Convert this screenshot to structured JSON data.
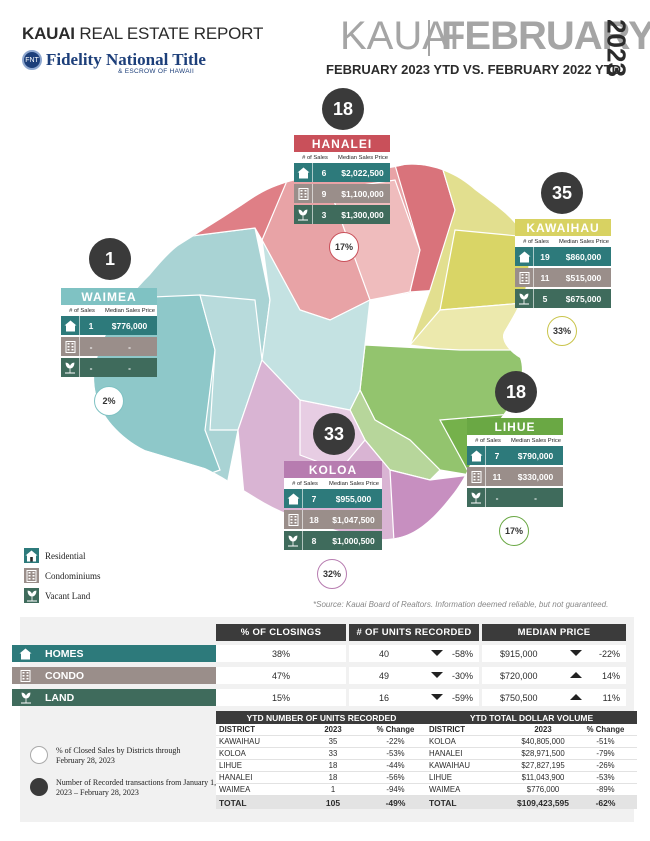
{
  "header": {
    "report_bold": "KAUAI",
    "report_rest": " REAL ESTATE REPORT",
    "logo_name": "Fidelity National Title",
    "logo_sub": "& ESCROW OF HAWAII",
    "place": "KAUAI",
    "month": "FEBRUARY",
    "year": "2023",
    "subtitle": "FEBRUARY 2023 YTD VS. FEBRUARY 2022 YTD"
  },
  "colors": {
    "residential": "#2d7a7b",
    "condominiums": "#9a8e8a",
    "vacant_land": "#3f6b5c",
    "hanalei": "#c9505a",
    "kawaihau": "#d8d262",
    "waimea": "#7fc2c3",
    "lihue": "#6aa844",
    "koloa": "#b77cb0"
  },
  "box_head": {
    "sales": "# of Sales",
    "price": "Median Sales Price"
  },
  "districts": {
    "hanalei": {
      "name": "HANALEI",
      "count": "18",
      "pct": "17%",
      "rows": [
        {
          "type": "residential",
          "icon": "house-icon",
          "sales": "6",
          "price": "$2,022,500"
        },
        {
          "type": "condominiums",
          "icon": "building-icon",
          "sales": "9",
          "price": "$1,100,000"
        },
        {
          "type": "vacant_land",
          "icon": "land-icon",
          "sales": "3",
          "price": "$1,300,000"
        }
      ]
    },
    "kawaihau": {
      "name": "KAWAIHAU",
      "count": "35",
      "pct": "33%",
      "rows": [
        {
          "type": "residential",
          "icon": "house-icon",
          "sales": "19",
          "price": "$860,000"
        },
        {
          "type": "condominiums",
          "icon": "building-icon",
          "sales": "11",
          "price": "$515,000"
        },
        {
          "type": "vacant_land",
          "icon": "land-icon",
          "sales": "5",
          "price": "$675,000"
        }
      ]
    },
    "waimea": {
      "name": "WAIMEA",
      "count": "1",
      "pct": "2%",
      "rows": [
        {
          "type": "residential",
          "icon": "house-icon",
          "sales": "1",
          "price": "$776,000"
        },
        {
          "type": "condominiums",
          "icon": "building-icon",
          "sales": "-",
          "price": "-"
        },
        {
          "type": "vacant_land",
          "icon": "land-icon",
          "sales": "-",
          "price": "-"
        }
      ]
    },
    "lihue": {
      "name": "LIHUE",
      "count": "18",
      "pct": "17%",
      "rows": [
        {
          "type": "residential",
          "icon": "house-icon",
          "sales": "7",
          "price": "$790,000"
        },
        {
          "type": "condominiums",
          "icon": "building-icon",
          "sales": "11",
          "price": "$330,000"
        },
        {
          "type": "vacant_land",
          "icon": "land-icon",
          "sales": "-",
          "price": "-"
        }
      ]
    },
    "koloa": {
      "name": "KOLOA",
      "count": "33",
      "pct": "32%",
      "rows": [
        {
          "type": "residential",
          "icon": "house-icon",
          "sales": "7",
          "price": "$955,000"
        },
        {
          "type": "condominiums",
          "icon": "building-icon",
          "sales": "18",
          "price": "$1,047,500"
        },
        {
          "type": "vacant_land",
          "icon": "land-icon",
          "sales": "8",
          "price": "$1,000,500"
        }
      ]
    }
  },
  "legend": {
    "residential": "Residential",
    "condominiums": "Condominiums",
    "vacant_land": "Vacant Land"
  },
  "source": "*Source: Kauai Board of Realtors. Information deemed reliable, but not guaranteed.",
  "summary": {
    "headers": {
      "closings": "% OF CLOSINGS",
      "units": "# OF UNITS RECORDED",
      "median": "MEDIAN PRICE"
    },
    "rows": [
      {
        "label": "HOMES",
        "icon": "house-icon",
        "type": "residential",
        "closings": "38%",
        "units": "40",
        "units_dir": "down",
        "units_change": "-58%",
        "median": "$915,000",
        "median_dir": "down",
        "median_change": "-22%"
      },
      {
        "label": "CONDO",
        "icon": "building-icon",
        "type": "condominiums",
        "closings": "47%",
        "units": "49",
        "units_dir": "down",
        "units_change": "-30%",
        "median": "$720,000",
        "median_dir": "up",
        "median_change": "14%"
      },
      {
        "label": "LAND",
        "icon": "land-icon",
        "type": "vacant_land",
        "closings": "15%",
        "units": "16",
        "units_dir": "down",
        "units_change": "-59%",
        "median": "$750,500",
        "median_dir": "up",
        "median_change": "11%"
      }
    ]
  },
  "ytd_units": {
    "title": "YTD NUMBER OF UNITS RECORDED",
    "cols": [
      "DISTRICT",
      "2023",
      "% Change"
    ],
    "rows": [
      [
        "KAWAIHAU",
        "35",
        "-22%"
      ],
      [
        "KOLOA",
        "33",
        "-53%"
      ],
      [
        "LIHUE",
        "18",
        "-44%"
      ],
      [
        "HANALEI",
        "18",
        "-56%"
      ],
      [
        "WAIMEA",
        "1",
        "-94%"
      ]
    ],
    "total": [
      "TOTAL",
      "105",
      "-49%"
    ]
  },
  "ytd_dollar": {
    "title": "YTD TOTAL DOLLAR VOLUME",
    "cols": [
      "DISTRICT",
      "2023",
      "% Change"
    ],
    "rows": [
      [
        "KOLOA",
        "$40,805,000",
        "-51%"
      ],
      [
        "HANALEI",
        "$28,971,500",
        "-79%"
      ],
      [
        "KAWAIHAU",
        "$27,827,195",
        "-26%"
      ],
      [
        "LIHUE",
        "$11,043,900",
        "-53%"
      ],
      [
        "WAIMEA",
        "$776,000",
        "-89%"
      ]
    ],
    "total": [
      "TOTAL",
      "$109,423,595",
      "-62%"
    ]
  },
  "key": {
    "open_circle": "% of Closed Sales by Districts through February 28, 2023",
    "filled_circle": "Number of Recorded transactions from January 1, 2023 – February 28, 2023"
  }
}
